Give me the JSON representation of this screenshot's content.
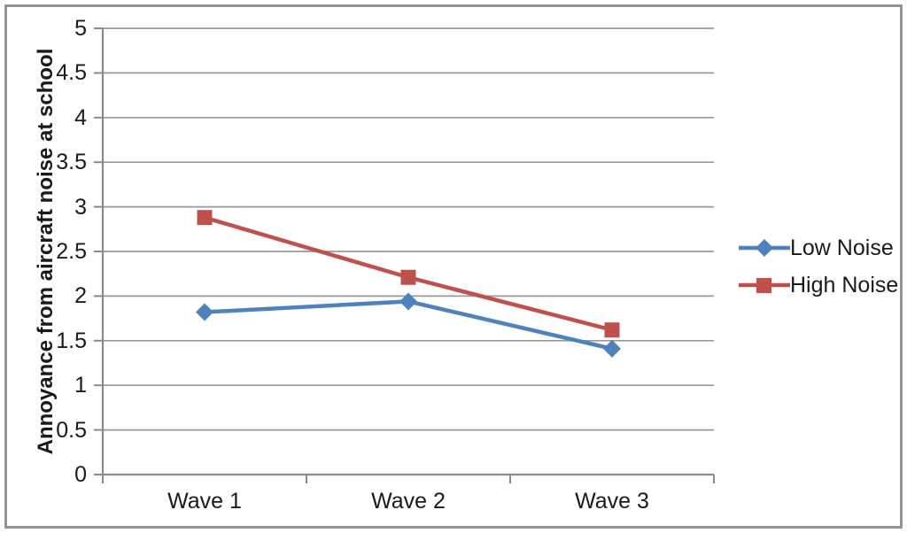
{
  "figure": {
    "background": "#ffffff",
    "frame_border_color": "#949494"
  },
  "chart_data": {
    "type": "line",
    "title": "",
    "ylabel": "Annoyance from aircraft noise at school",
    "xlabel": "",
    "categories": [
      "Wave 1",
      "Wave 2",
      "Wave 3"
    ],
    "series": [
      {
        "name": "Low Noise",
        "color": "#4F81BD",
        "marker": "diamond",
        "values": [
          1.82,
          1.94,
          1.41
        ]
      },
      {
        "name": "High Noise",
        "color": "#C0504D",
        "marker": "square",
        "values": [
          2.88,
          2.21,
          1.62
        ]
      }
    ],
    "ylim": [
      0,
      5
    ],
    "ytick_step": 0.5,
    "ytick_labels": [
      "5",
      "4.5",
      "4",
      "3.5",
      "3",
      "2.5",
      "2",
      "1.5",
      "1",
      "0.5",
      "0"
    ],
    "grid": true,
    "legend_position": "right",
    "grid_color": "#999999",
    "axis_color": "#8a8a8a",
    "text_color": "#1a1a1a"
  }
}
